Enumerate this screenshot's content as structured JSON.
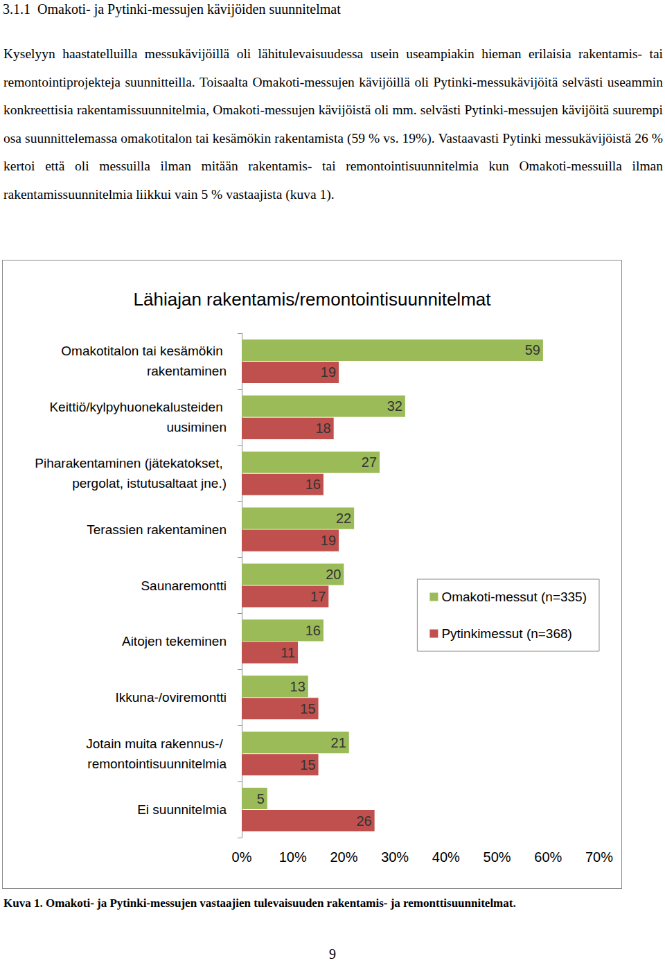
{
  "heading": {
    "number": "3.1.1",
    "text": "Omakoti- ja Pytinki-messujen kävijöiden suunnitelmat"
  },
  "paragraph": "Kyselyyn haastatelluilla messukävijöillä oli lähitulevaisuudessa usein useampiakin hieman erilaisia rakentamis- tai remontointiprojekteja suunnitteilla. Toisaalta Omakoti-messujen kävijöillä oli Pytinki-messukävijöitä selvästi useammin konkreettisia rakentamissuunnitelmia, Omakoti-messujen kävijöistä oli mm. selvästi Pytinki-messujen kävijöitä suurempi osa suunnittelemassa omakotitalon tai kesämökin rakentamista (59 % vs. 19%). Vastaavasti Pytinki messukävijöistä 26 % kertoi että oli messuilla ilman mitään rakentamis- tai remontointisuunnitelmia kun Omakoti-messuilla ilman rakentamissuunnitelmia liikkui vain 5 % vastaajista (kuva 1).",
  "chart_data": {
    "type": "bar",
    "title": "Lähiajan rakentamis/remontointisuunnitelmat",
    "orientation": "horizontal",
    "categories": [
      "Omakotitalon tai kesämökin rakentaminen",
      "Keittiö/kylpyhuonekalusteiden uusiminen",
      "Piharakentaminen (jätekatokset, pergolat, istutusaltaat jne.)",
      "Terassien rakentaminen",
      "Saunaremontti",
      "Aitojen tekeminen",
      "Ikkuna-/oviremontti",
      "Jotain muita rakennus-/ remontointisuunnitelmia",
      "Ei suunnitelmia"
    ],
    "series": [
      {
        "name": "Omakoti-messut (n=335)",
        "color": "#9bbb59",
        "values": [
          59,
          32,
          27,
          22,
          20,
          16,
          13,
          21,
          5
        ]
      },
      {
        "name": "Pytinkimessut (n=368)",
        "color": "#c0504d",
        "values": [
          19,
          18,
          16,
          19,
          17,
          11,
          15,
          15,
          26
        ]
      }
    ],
    "xlim": [
      0,
      70
    ],
    "xticks": [
      {
        "value": 0,
        "label": "0%"
      },
      {
        "value": 10,
        "label": "10%"
      },
      {
        "value": 20,
        "label": "20%"
      },
      {
        "value": 30,
        "label": "30%"
      },
      {
        "value": 40,
        "label": "40%"
      },
      {
        "value": 50,
        "label": "50%"
      },
      {
        "value": 60,
        "label": "60%"
      },
      {
        "value": 70,
        "label": "70%"
      }
    ],
    "grid": false,
    "legend": "right",
    "data_labels": true
  },
  "caption": "Kuva 1. Omakoti- ja Pytinki-messujen vastaajien tulevaisuuden rakentamis- ja remonttisuunnitelmat.",
  "page_number": 9
}
